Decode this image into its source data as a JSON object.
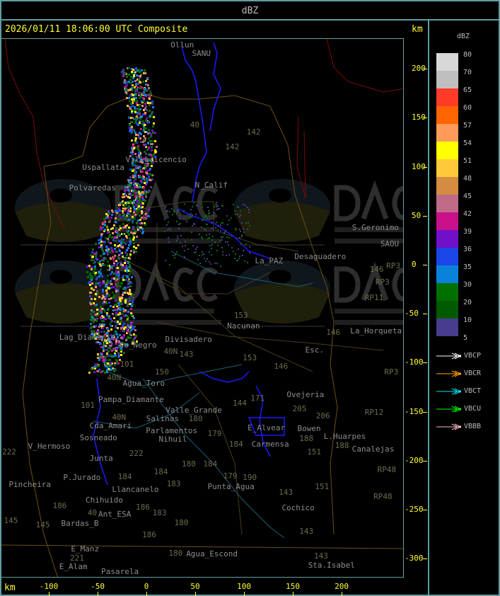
{
  "header": {
    "title": "dBZ"
  },
  "main": {
    "title": "2026/01/11 18:06:00 UTC Composite",
    "axis_unit": "km"
  },
  "axes": {
    "x_ticks": [
      -100,
      -50,
      0,
      50,
      100,
      150,
      200
    ],
    "y_ticks": [
      200,
      150,
      100,
      50,
      0,
      -50,
      -100,
      -150,
      -200,
      -250,
      -300
    ],
    "unit": "km"
  },
  "legend": {
    "title": "dBZ",
    "labels": [
      "80",
      "70",
      "65",
      "60",
      "57",
      "54",
      "51",
      "48",
      "45",
      "42",
      "39",
      "36",
      "35",
      "30",
      "20",
      "10",
      "5"
    ],
    "colors": [
      "#d8d8d8",
      "#bfbfbf",
      "#ff3a28",
      "#ff6400",
      "#ff9a5a",
      "#ffff00",
      "#ffc83a",
      "#d48c40",
      "#c06a88",
      "#c8108a",
      "#7010c8",
      "#1a46e8",
      "#0a82dc",
      "#007000",
      "#005a00",
      "#483c8c"
    ],
    "radars": [
      {
        "name": "VBCP",
        "color": "#ffffff"
      },
      {
        "name": "VBCR",
        "color": "#ffa500"
      },
      {
        "name": "VBCT",
        "color": "#00e5ee"
      },
      {
        "name": "VBCU",
        "color": "#00ff00"
      },
      {
        "name": "VBBB",
        "color": "#ffb6c1"
      }
    ]
  },
  "watermark": {
    "logo": "DACC",
    "line1": "Dirección de Agricultura",
    "line2": "y Contingencias Climáticas",
    "url": "http://www.contingencias.mendoza.gov.ar"
  },
  "places": [
    {
      "name": "Ollun",
      "x": 24,
      "y": 225
    },
    {
      "name": "SANU",
      "x": 46,
      "y": 216
    },
    {
      "name": "Villavicencio",
      "x": -22,
      "y": 108
    },
    {
      "name": "Uspallata",
      "x": -52,
      "y": 100
    },
    {
      "name": "Polvaredas",
      "x": -80,
      "y": 79
    },
    {
      "name": "N_Calif",
      "x": 49,
      "y": 82
    },
    {
      "name": "S.Geronimo",
      "x": 210,
      "y": 38
    },
    {
      "name": "SAOU",
      "x": 239,
      "y": 22
    },
    {
      "name": "Desaguadero",
      "x": 151,
      "y": 9
    },
    {
      "name": "La_PAZ",
      "x": 125,
      "y": 4
    },
    {
      "name": "Nacunan",
      "x": 82,
      "y": -62
    },
    {
      "name": "La_Horqueta",
      "x": 212,
      "y": -67
    },
    {
      "name": "Esc.",
      "x": 162,
      "y": -87
    },
    {
      "name": "Lag_Diamante",
      "x": -90,
      "y": -74
    },
    {
      "name": "Co_Negro",
      "x": -43,
      "y": -82
    },
    {
      "name": "Divisadero",
      "x": 4,
      "y": -76
    },
    {
      "name": "Agua_Toro",
      "x": -25,
      "y": -121
    },
    {
      "name": "Pampa_Diamante",
      "x": -50,
      "y": -137
    },
    {
      "name": "Valle_Grande",
      "x": 19,
      "y": -148
    },
    {
      "name": "Salinas",
      "x": -1,
      "y": -157
    },
    {
      "name": "Cda_Amari",
      "x": -30,
      "y": -164
    },
    {
      "name": "Parlamentos",
      "x": -52,
      "y": -169
    },
    {
      "name": "Sosneado",
      "x": -69,
      "y": -176
    },
    {
      "name": "Nihuil",
      "x": 12,
      "y": -178
    },
    {
      "name": "V_Hermoso",
      "x": -122,
      "y": -185
    },
    {
      "name": "Junta",
      "x": -59,
      "y": -197
    },
    {
      "name": "P.Jurado",
      "x": -86,
      "y": -217
    },
    {
      "name": "Pincheira",
      "x": -91,
      "y": -224
    },
    {
      "name": "Llancanelo",
      "x": -36,
      "y": -229
    },
    {
      "name": "Chihuido",
      "x": -63,
      "y": -240
    },
    {
      "name": "Ant_ESA",
      "x": -50,
      "y": -254
    },
    {
      "name": "Bardas_B",
      "x": -88,
      "y": -264
    },
    {
      "name": "E_Manz",
      "x": -78,
      "y": -290
    },
    {
      "name": "E_Alam",
      "x": -90,
      "y": -308
    },
    {
      "name": "Pasarela",
      "x": -76,
      "y": -313
    },
    {
      "name": "Agua_Escond",
      "x": 40,
      "y": -295
    },
    {
      "name": "Ovejeria",
      "x": 143,
      "y": -132
    },
    {
      "name": "E_Alvear",
      "x": 103,
      "y": -166
    },
    {
      "name": "Bowen",
      "x": 125,
      "y": -167
    },
    {
      "name": "L.Huarpes",
      "x": 152,
      "y": -175
    },
    {
      "name": "Carmensa",
      "x": 107,
      "y": -183
    },
    {
      "name": "Punta_Agua",
      "x": 62,
      "y": -226
    },
    {
      "name": "Cochico",
      "x": 138,
      "y": -248
    },
    {
      "name": "Sta.Isabel",
      "x": 165,
      "y": -306
    },
    {
      "name": "Canalejas",
      "x": 210,
      "y": -188
    }
  ],
  "roads": [
    {
      "name": "40",
      "x": 44,
      "y": 143
    },
    {
      "name": "142",
      "x": 102,
      "y": 136
    },
    {
      "name": "142",
      "x": 80,
      "y": 121
    },
    {
      "name": "146",
      "x": 228,
      "y": -4
    },
    {
      "name": "RP3",
      "x": 245,
      "y": -1
    },
    {
      "name": "RP3",
      "x": 234,
      "y": -17
    },
    {
      "name": "RP11",
      "x": 223,
      "y": -33
    },
    {
      "name": "153",
      "x": 89,
      "y": -51
    },
    {
      "name": "146",
      "x": 198,
      "y": -69
    },
    {
      "name": "153",
      "x": 98,
      "y": -95
    },
    {
      "name": "146",
      "x": 130,
      "y": -103
    },
    {
      "name": "RP3",
      "x": 243,
      "y": -109
    },
    {
      "name": "40N",
      "x": -12,
      "y": -88
    },
    {
      "name": "143",
      "x": 33,
      "y": -91
    },
    {
      "name": "101",
      "x": -28,
      "y": -101
    },
    {
      "name": "150",
      "x": 8,
      "y": -109
    },
    {
      "name": "40N",
      "x": -12,
      "y": -115
    },
    {
      "name": "101",
      "x": -39,
      "y": -143
    },
    {
      "name": "40N",
      "x": -36,
      "y": -155
    },
    {
      "name": "180",
      "x": 28,
      "y": -157
    },
    {
      "name": "144",
      "x": 37,
      "y": -141
    },
    {
      "name": "179",
      "x": 62,
      "y": -172
    },
    {
      "name": "222",
      "x": -100,
      "y": -191
    },
    {
      "name": "222",
      "x": -69,
      "y": -192
    },
    {
      "name": "184",
      "x": -30,
      "y": -216
    },
    {
      "name": "184",
      "x": 7,
      "y": -211
    },
    {
      "name": "180",
      "x": 21,
      "y": -203
    },
    {
      "name": "184",
      "x": 43,
      "y": -203
    },
    {
      "name": "183",
      "x": -9,
      "y": -223
    },
    {
      "name": "186",
      "x": -46,
      "y": -246
    },
    {
      "name": "186",
      "x": -26,
      "y": -247
    },
    {
      "name": "40",
      "x": -61,
      "y": -253
    },
    {
      "name": "183",
      "x": -9,
      "y": -253
    },
    {
      "name": "145",
      "x": -114,
      "y": -265
    },
    {
      "name": "145",
      "x": -96,
      "y": -261
    },
    {
      "name": "180",
      "x": 28,
      "y": -263
    },
    {
      "name": "186",
      "x": -5,
      "y": -275
    },
    {
      "name": "221",
      "x": -79,
      "y": -299
    },
    {
      "name": "180",
      "x": 22,
      "y": -294
    },
    {
      "name": "171",
      "x": 106,
      "y": -136
    },
    {
      "name": "205",
      "x": 149,
      "y": -147
    },
    {
      "name": "206",
      "x": 173,
      "y": -154
    },
    {
      "name": "188",
      "x": 156,
      "y": -168
    },
    {
      "name": "151",
      "x": 164,
      "y": -191
    },
    {
      "name": "184",
      "x": 84,
      "y": -183
    },
    {
      "name": "179",
      "x": 78,
      "y": -215
    },
    {
      "name": "190",
      "x": 98,
      "y": -217
    },
    {
      "name": "151",
      "x": 172,
      "y": -226
    },
    {
      "name": "143",
      "x": 135,
      "y": -232
    },
    {
      "name": "143",
      "x": 156,
      "y": -272
    },
    {
      "name": "143",
      "x": 171,
      "y": -297
    },
    {
      "name": "RP12",
      "x": 223,
      "y": -150
    },
    {
      "name": "188",
      "x": 207,
      "y": -184
    },
    {
      "name": "RP48",
      "x": 236,
      "y": -209
    },
    {
      "name": "RP48",
      "x": 232,
      "y": -236
    }
  ]
}
